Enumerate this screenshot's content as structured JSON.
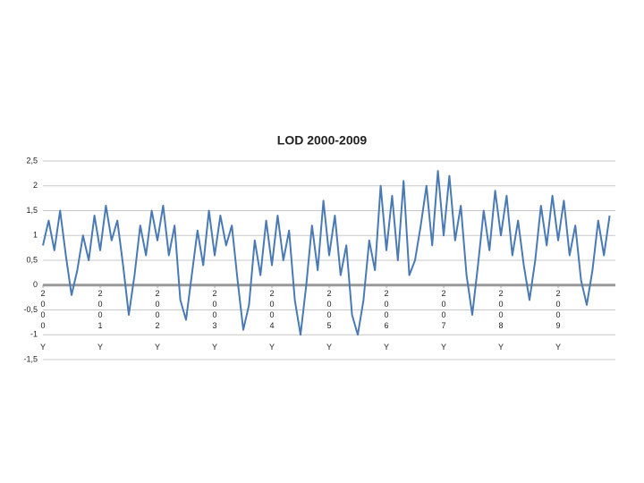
{
  "chart_data": {
    "type": "line",
    "title": "LOD 2000-2009",
    "x": [
      2000.0,
      2000.1,
      2000.2,
      2000.3,
      2000.4,
      2000.5,
      2000.6,
      2000.7,
      2000.8,
      2000.9,
      2001.0,
      2001.1,
      2001.2,
      2001.3,
      2001.4,
      2001.5,
      2001.6,
      2001.7,
      2001.8,
      2001.9,
      2002.0,
      2002.1,
      2002.2,
      2002.3,
      2002.4,
      2002.5,
      2002.6,
      2002.7,
      2002.8,
      2002.9,
      2003.0,
      2003.1,
      2003.2,
      2003.3,
      2003.4,
      2003.5,
      2003.6,
      2003.7,
      2003.8,
      2003.9,
      2004.0,
      2004.1,
      2004.2,
      2004.3,
      2004.4,
      2004.5,
      2004.6,
      2004.7,
      2004.8,
      2004.9,
      2005.0,
      2005.1,
      2005.2,
      2005.3,
      2005.4,
      2005.5,
      2005.6,
      2005.7,
      2005.8,
      2005.9,
      2006.0,
      2006.1,
      2006.2,
      2006.3,
      2006.4,
      2006.5,
      2006.6,
      2006.7,
      2006.8,
      2006.9,
      2007.0,
      2007.1,
      2007.2,
      2007.3,
      2007.4,
      2007.5,
      2007.6,
      2007.7,
      2007.8,
      2007.9,
      2008.0,
      2008.1,
      2008.2,
      2008.3,
      2008.4,
      2008.5,
      2008.6,
      2008.7,
      2008.8,
      2008.9,
      2009.0,
      2009.1,
      2009.2,
      2009.3,
      2009.4,
      2009.5,
      2009.6,
      2009.7,
      2009.8,
      2009.9
    ],
    "series": [
      {
        "color": "#4a7ab5",
        "values": [
          0.8,
          1.3,
          0.7,
          1.5,
          0.6,
          -0.2,
          0.3,
          1.0,
          0.5,
          1.4,
          0.7,
          1.6,
          0.9,
          1.3,
          0.4,
          -0.6,
          0.2,
          1.2,
          0.6,
          1.5,
          0.9,
          1.6,
          0.6,
          1.2,
          -0.3,
          -0.7,
          0.2,
          1.1,
          0.4,
          1.5,
          0.6,
          1.4,
          0.8,
          1.2,
          0.1,
          -0.9,
          -0.4,
          0.9,
          0.2,
          1.3,
          0.4,
          1.4,
          0.5,
          1.1,
          -0.3,
          -1.0,
          0.0,
          1.2,
          0.3,
          1.7,
          0.6,
          1.4,
          0.2,
          0.8,
          -0.6,
          -1.0,
          -0.3,
          0.9,
          0.3,
          2.0,
          0.7,
          1.8,
          0.5,
          2.1,
          0.2,
          0.5,
          1.2,
          2.0,
          0.8,
          2.3,
          1.0,
          2.2,
          0.9,
          1.6,
          0.2,
          -0.6,
          0.4,
          1.5,
          0.7,
          1.9,
          1.0,
          1.8,
          0.6,
          1.3,
          0.4,
          -0.3,
          0.5,
          1.6,
          0.8,
          1.8,
          0.9,
          1.7,
          0.6,
          1.2,
          0.1,
          -0.4,
          0.3,
          1.3,
          0.6,
          1.4
        ]
      }
    ],
    "xlim": [
      2000,
      2010
    ],
    "xticks": [
      {
        "value": 2000,
        "label": "2000 Y"
      },
      {
        "value": 2001,
        "label": "2001 Y"
      },
      {
        "value": 2002,
        "label": "2002 Y"
      },
      {
        "value": 2003,
        "label": "2003 Y"
      },
      {
        "value": 2004,
        "label": "2004 Y"
      },
      {
        "value": 2005,
        "label": "2005 Y"
      },
      {
        "value": 2006,
        "label": "2006 Y"
      },
      {
        "value": 2007,
        "label": "2007 Y"
      },
      {
        "value": 2008,
        "label": "2008 Y"
      },
      {
        "value": 2009,
        "label": "2009 Y"
      }
    ],
    "ylim": [
      -1.5,
      2.5
    ],
    "yticks": [
      {
        "value": -1.5,
        "label": "-1,5"
      },
      -1,
      {
        "value": -0.5,
        "label": "-0,5"
      },
      0,
      {
        "value": 0.5,
        "label": "0,5"
      },
      1,
      {
        "value": 1.5,
        "label": "1,5"
      },
      2,
      {
        "value": 2.5,
        "label": "2,5"
      }
    ],
    "grid": true
  }
}
